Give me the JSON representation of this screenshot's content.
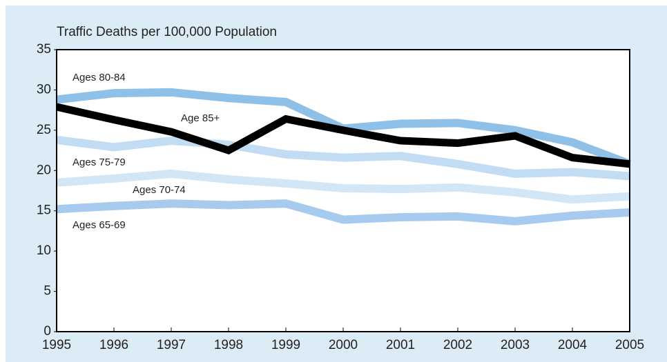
{
  "chart_data": {
    "type": "line",
    "title": "Traffic Deaths per 100,000 Population",
    "x": [
      1995,
      1996,
      1997,
      1998,
      1999,
      2000,
      2001,
      2002,
      2003,
      2004,
      2005
    ],
    "xlim": [
      1995,
      2005
    ],
    "xticks": [
      1995,
      1996,
      1997,
      1998,
      1999,
      2000,
      2001,
      2002,
      2003,
      2004,
      2005
    ],
    "ylim": [
      0,
      35
    ],
    "yticks": [
      0,
      5,
      10,
      15,
      20,
      25,
      30,
      35
    ],
    "series": [
      {
        "name": "Ages 70-74",
        "color": "#d3e6f6",
        "values": [
          18.5,
          19.0,
          19.6,
          18.9,
          18.4,
          17.8,
          17.7,
          17.9,
          17.3,
          16.4,
          16.8
        ]
      },
      {
        "name": "Ages 65-69",
        "color": "#a6cbee",
        "values": [
          15.2,
          15.6,
          15.9,
          15.7,
          15.9,
          13.9,
          14.2,
          14.3,
          13.7,
          14.4,
          14.8
        ]
      },
      {
        "name": "Ages 75-79",
        "color": "#c2dcf3",
        "values": [
          23.8,
          22.9,
          23.7,
          23.2,
          22.0,
          21.6,
          21.8,
          20.8,
          19.6,
          19.8,
          19.3
        ]
      },
      {
        "name": "Ages 80-84",
        "color": "#8fc0e8",
        "values": [
          28.8,
          29.6,
          29.7,
          29.0,
          28.5,
          25.2,
          25.8,
          25.9,
          25.0,
          23.5,
          20.8
        ]
      },
      {
        "name": "Age 85+",
        "color": "#000000",
        "values": [
          27.9,
          26.3,
          24.8,
          22.5,
          26.4,
          25.0,
          23.7,
          23.4,
          24.3,
          21.6,
          20.8
        ]
      }
    ]
  }
}
